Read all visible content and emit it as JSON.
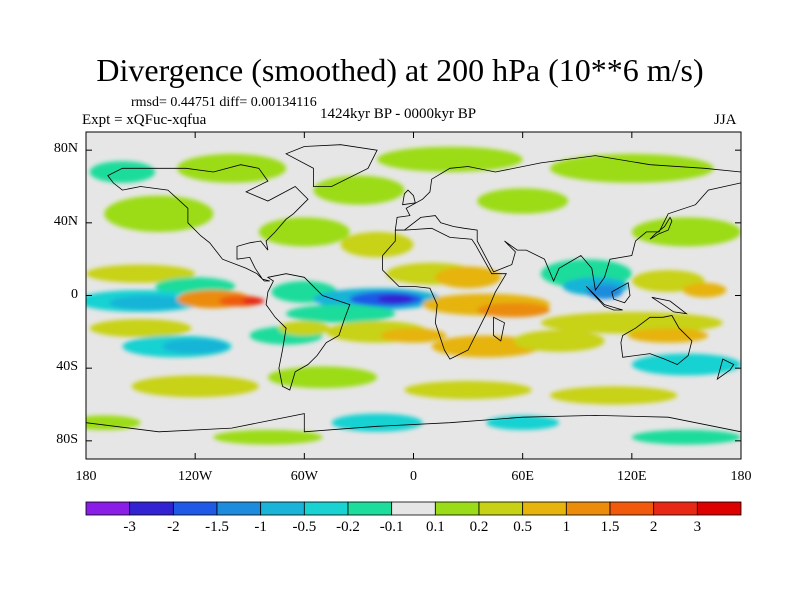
{
  "title": "Divergence (smoothed) at 200 hPa (10**6 m/s)",
  "stats": "rmsd= 0.44751 diff= 0.00134116",
  "subtitle": "1424kyr BP - 0000kyr BP",
  "experiment": "Expt = xQFuc-xqfua",
  "season": "JJA",
  "map": {
    "projection": "cylindrical-equidistant",
    "lon_range": [
      -180,
      180
    ],
    "lat_range": [
      -90,
      90
    ],
    "lat_ticks": [
      {
        "value": 80,
        "label": "80N"
      },
      {
        "value": 40,
        "label": "40N"
      },
      {
        "value": 0,
        "label": "0"
      },
      {
        "value": -40,
        "label": "40S"
      },
      {
        "value": -80,
        "label": "80S"
      }
    ],
    "lon_ticks": [
      {
        "value": -180,
        "label": "180"
      },
      {
        "value": -120,
        "label": "120W"
      },
      {
        "value": -60,
        "label": "60W"
      },
      {
        "value": 0,
        "label": "0"
      },
      {
        "value": 60,
        "label": "60E"
      },
      {
        "value": 120,
        "label": "120E"
      },
      {
        "value": 180,
        "label": "180"
      }
    ],
    "background_color": "#e6e6e6"
  },
  "colorbar": {
    "levels": [
      "-3",
      "-2",
      "-1.5",
      "-1",
      "-0.5",
      "-0.2",
      "-0.1",
      "0.1",
      "0.2",
      "0.5",
      "1",
      "1.5",
      "2",
      "3"
    ],
    "colors": [
      "#8a1ee6",
      "#3222d2",
      "#1f5ae6",
      "#1e8cdc",
      "#19b4d7",
      "#19d2d2",
      "#1edc9b",
      "#e6e6e6",
      "#9bdc19",
      "#c8d214",
      "#e6b40a",
      "#eb8c0a",
      "#f05a0a",
      "#e62814",
      "#dc0000"
    ]
  }
}
